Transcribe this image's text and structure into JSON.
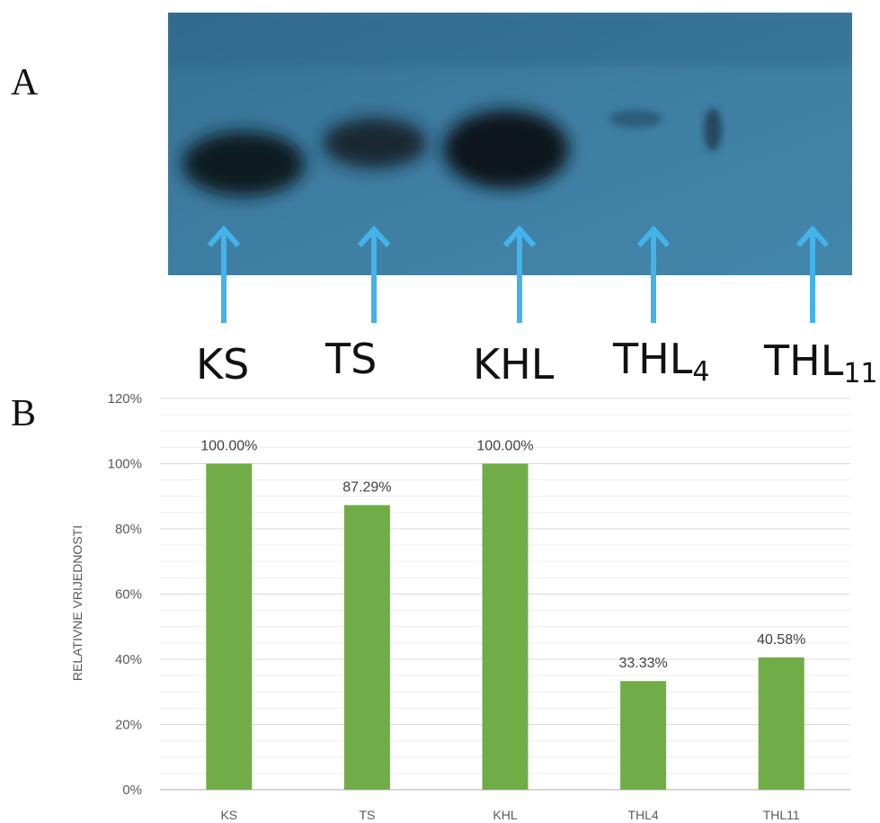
{
  "panels": {
    "a_letter": "A",
    "b_letter": "B"
  },
  "blot": {
    "background_color": "#3f7ea3",
    "band_color": "#0e1a22",
    "arrow_color": "#43b3ea"
  },
  "lanes": [
    {
      "label": "KS",
      "sub": ""
    },
    {
      "label": "TS",
      "sub": ""
    },
    {
      "label": "KHL",
      "sub": ""
    },
    {
      "label": "THL",
      "sub": "4"
    },
    {
      "label": "THL",
      "sub": "11"
    }
  ],
  "chart_data": {
    "type": "bar",
    "categories": [
      "KS",
      "TS",
      "KHL",
      "THL4",
      "THL11"
    ],
    "values": [
      100.0,
      87.29,
      100.0,
      33.33,
      40.58
    ],
    "data_labels": [
      "100.00%",
      "87.29%",
      "100.00%",
      "33.33%",
      "40.58%"
    ],
    "ylabel": "RELATIVNE VRIJEDNOSTI",
    "ylim": [
      0,
      120
    ],
    "yticks": [
      0,
      20,
      40,
      60,
      80,
      100,
      120
    ],
    "ytick_labels": [
      "0%",
      "20%",
      "40%",
      "60%",
      "80%",
      "100%",
      "120%"
    ],
    "bar_color": "#70ad47",
    "grid": true,
    "legend": "none"
  }
}
